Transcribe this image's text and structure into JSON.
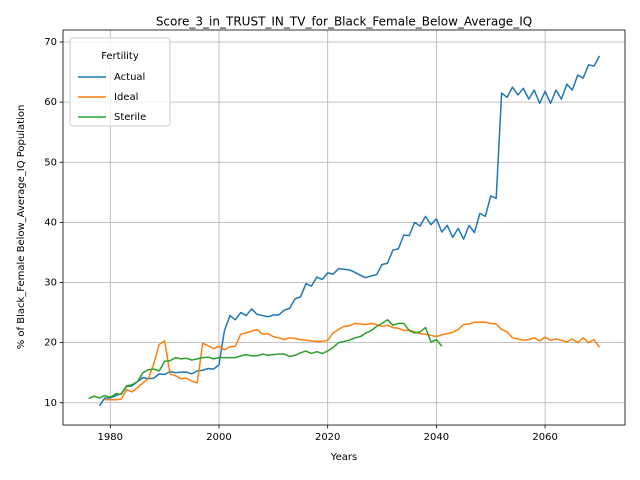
{
  "chart_data": {
    "type": "line",
    "title": "Score_3_in_TRUST_IN_TV_for_Black_Female_Below_Average_IQ",
    "xlabel": "Years",
    "ylabel": "% of Black_Female Below_Average_IQ Population",
    "legend_title": "Fertility",
    "legend": "upper left",
    "grid": true,
    "xlim": [
      1971.3,
      2074.7
    ],
    "xticks": [
      1980,
      2000,
      2020,
      2040,
      2060
    ],
    "ylim": [
      6.3,
      72
    ],
    "yticks": [
      10,
      20,
      30,
      40,
      50,
      60,
      70
    ],
    "x": [
      1976,
      1977,
      1978,
      1979,
      1980,
      1981,
      1982,
      1983,
      1984,
      1985,
      1986,
      1987,
      1988,
      1989,
      1990,
      1991,
      1992,
      1993,
      1994,
      1995,
      1996,
      1997,
      1998,
      1999,
      2000,
      2001,
      2002,
      2003,
      2004,
      2005,
      2006,
      2007,
      2008,
      2009,
      2010,
      2011,
      2012,
      2013,
      2014,
      2015,
      2016,
      2017,
      2018,
      2019,
      2020,
      2021,
      2022,
      2023,
      2024,
      2025,
      2026,
      2027,
      2028,
      2029,
      2030,
      2031,
      2032,
      2033,
      2034,
      2035,
      2036,
      2037,
      2038,
      2039,
      2040,
      2041,
      2042,
      2043,
      2044,
      2045,
      2046,
      2047,
      2048,
      2049,
      2050,
      2051,
      2052,
      2053,
      2054,
      2055,
      2056,
      2057,
      2058,
      2059,
      2060,
      2061,
      2062,
      2063,
      2064,
      2065,
      2066,
      2067,
      2068,
      2069,
      2070
    ],
    "series": [
      {
        "name": "Actual",
        "color": "#1f77b4",
        "values": [
          null,
          null,
          9.5,
          10.8,
          10.8,
          11.2,
          11.5,
          12.7,
          12.8,
          13.5,
          14.2,
          14.0,
          14.1,
          14.8,
          14.7,
          15.2,
          15.0,
          15.1,
          15.1,
          14.8,
          15.3,
          15.4,
          15.7,
          15.6,
          16.3,
          22.0,
          24.5,
          23.8,
          25.0,
          24.5,
          25.6,
          24.7,
          24.5,
          24.3,
          24.6,
          24.6,
          25.4,
          25.7,
          27.3,
          27.6,
          29.8,
          29.4,
          30.9,
          30.5,
          31.6,
          31.4,
          32.3,
          32.2,
          32.1,
          31.7,
          31.2,
          30.8,
          31.1,
          31.3,
          33.0,
          33.2,
          35.4,
          35.6,
          37.9,
          37.8,
          40.0,
          39.4,
          41.0,
          39.6,
          40.6,
          38.4,
          39.5,
          37.5,
          39.0,
          37.2,
          39.5,
          38.3,
          41.5,
          41.0,
          44.4,
          44.0,
          61.5,
          60.8,
          62.5,
          61.2,
          62.3,
          60.5,
          62.0,
          59.8,
          61.8,
          59.8,
          62.0,
          60.5,
          63.0,
          62.0,
          64.5,
          64.0,
          66.2,
          66.0,
          67.7
        ]
      },
      {
        "name": "Ideal",
        "color": "#ff7f0e",
        "values": [
          null,
          null,
          null,
          10.5,
          10.5,
          10.5,
          10.6,
          12.2,
          11.8,
          12.5,
          13.3,
          14.0,
          16.5,
          19.7,
          20.3,
          14.8,
          14.5,
          14.0,
          14.1,
          13.6,
          13.3,
          19.9,
          19.5,
          19.0,
          19.4,
          18.8,
          19.3,
          19.4,
          21.4,
          21.6,
          21.9,
          22.2,
          21.4,
          21.5,
          21.0,
          20.8,
          20.5,
          20.8,
          20.7,
          20.5,
          20.4,
          20.3,
          20.2,
          20.2,
          20.4,
          21.6,
          22.2,
          22.7,
          22.8,
          23.2,
          23.1,
          23.0,
          23.2,
          23.0,
          22.7,
          22.9,
          22.5,
          22.4,
          22.0,
          22.1,
          21.8,
          21.5,
          21.4,
          21.2,
          21.0,
          21.3,
          21.5,
          21.7,
          22.2,
          23.0,
          23.1,
          23.4,
          23.4,
          23.4,
          23.2,
          23.1,
          22.2,
          21.8,
          20.8,
          20.6,
          20.4,
          20.5,
          20.8,
          20.3,
          20.9,
          20.4,
          20.6,
          20.4,
          20.1,
          20.6,
          20.0,
          20.8,
          20.0,
          20.5,
          19.2
        ]
      },
      {
        "name": "Sterile",
        "color": "#2ca02c",
        "values": [
          10.7,
          11.1,
          10.8,
          11.2,
          10.9,
          11.5,
          11.4,
          12.8,
          13.0,
          13.5,
          15.0,
          15.5,
          15.6,
          15.3,
          16.9,
          17.0,
          17.5,
          17.3,
          17.4,
          17.1,
          17.3,
          17.5,
          17.6,
          17.3,
          17.5,
          17.5,
          17.5,
          17.5,
          17.8,
          18.0,
          17.8,
          17.8,
          18.1,
          17.9,
          18.0,
          18.1,
          18.1,
          17.7,
          17.9,
          18.3,
          18.6,
          18.2,
          18.5,
          18.2,
          18.6,
          19.2,
          20.0,
          20.2,
          20.4,
          20.8,
          21.0,
          21.6,
          22.0,
          22.7,
          23.2,
          23.8,
          22.9,
          23.2,
          23.2,
          22.0,
          21.6,
          21.8,
          22.5,
          20.1,
          20.5,
          19.4,
          null,
          null,
          null,
          null,
          null,
          null,
          null,
          null,
          null,
          null,
          null,
          null,
          null,
          null,
          null,
          null,
          null,
          null,
          null,
          null,
          null,
          null,
          null,
          null,
          null,
          null,
          null,
          null,
          null
        ]
      }
    ]
  }
}
